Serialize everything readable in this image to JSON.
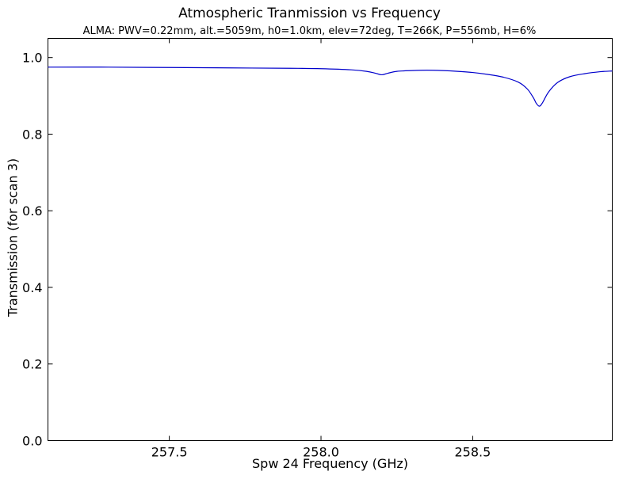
{
  "chart_data": {
    "type": "line",
    "title": "Atmospheric Tranmission vs Frequency",
    "subtitle": "ALMA: PWV=0.22mm, alt.=5059m, h0=1.0km, elev=72deg, T=266K, P=556mb, H=6%",
    "xlabel": "Spw 24 Frequency (GHz)",
    "ylabel": "Transmission (for scan 3)",
    "xlim": [
      257.1,
      258.96
    ],
    "ylim": [
      0.0,
      1.05
    ],
    "xticks": [
      257.5,
      258.0,
      258.5
    ],
    "xtick_labels": [
      "257.5",
      "258.0",
      "258.5"
    ],
    "yticks": [
      0.0,
      0.2,
      0.4,
      0.6,
      0.8,
      1.0
    ],
    "ytick_labels": [
      "0.0",
      "0.2",
      "0.4",
      "0.6",
      "0.8",
      "1.0"
    ],
    "grid": false,
    "series": [
      {
        "color": "#0000cc",
        "x": [
          257.1,
          257.3,
          257.5,
          257.7,
          257.9,
          258.0,
          258.1,
          258.15,
          258.18,
          258.2,
          258.22,
          258.25,
          258.3,
          258.35,
          258.4,
          258.45,
          258.5,
          258.55,
          258.6,
          258.65,
          258.68,
          258.7,
          258.71,
          258.72,
          258.73,
          258.75,
          258.78,
          258.82,
          258.87,
          258.92,
          258.96
        ],
        "y": [
          0.975,
          0.975,
          0.974,
          0.973,
          0.972,
          0.971,
          0.968,
          0.964,
          0.959,
          0.955,
          0.959,
          0.964,
          0.966,
          0.967,
          0.966,
          0.964,
          0.961,
          0.956,
          0.949,
          0.936,
          0.918,
          0.895,
          0.88,
          0.873,
          0.882,
          0.91,
          0.935,
          0.95,
          0.958,
          0.963,
          0.965
        ]
      }
    ]
  }
}
